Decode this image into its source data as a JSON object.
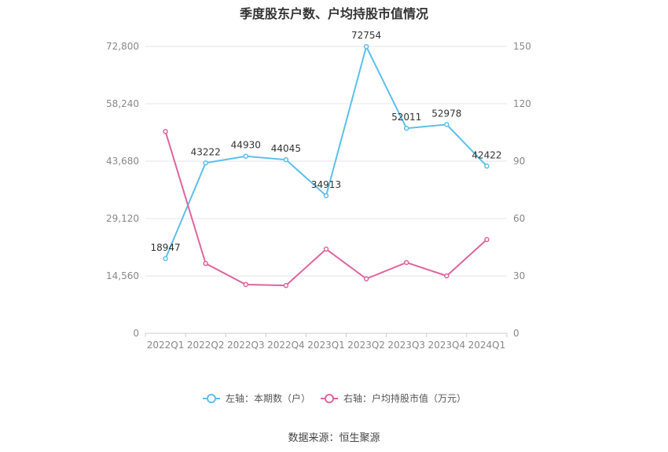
{
  "chart_data": {
    "type": "line",
    "title": "季度股东户数、户均持股市值情况",
    "categories": [
      "2022Q1",
      "2022Q2",
      "2022Q3",
      "2022Q4",
      "2023Q1",
      "2023Q2",
      "2023Q3",
      "2023Q4",
      "2024Q1"
    ],
    "left_axis": {
      "ticks": [
        "0",
        "14,560",
        "29,120",
        "43,680",
        "58,240",
        "72,800"
      ],
      "min": 0,
      "max": 72800
    },
    "right_axis": {
      "ticks": [
        "0",
        "30",
        "60",
        "90",
        "120",
        "150"
      ],
      "min": 0,
      "max": 150
    },
    "series": [
      {
        "name": "左轴：本期数（户）",
        "axis": "left",
        "color": "#5bc0eb",
        "values": [
          18947,
          43222,
          44930,
          44045,
          34913,
          72754,
          52011,
          52978,
          42422
        ],
        "labels": [
          "18947",
          "43222",
          "44930",
          "44045",
          "34913",
          "72754",
          "52011",
          "52978",
          "42422"
        ]
      },
      {
        "name": "右轴：户均持股市值（万元）",
        "axis": "right",
        "color": "#e0649e",
        "values": [
          105.5,
          36.5,
          25.5,
          25,
          44,
          28.5,
          37,
          30,
          49
        ]
      }
    ],
    "grid": true,
    "legend": "bottom"
  },
  "source": "数据来源：恒生聚源"
}
